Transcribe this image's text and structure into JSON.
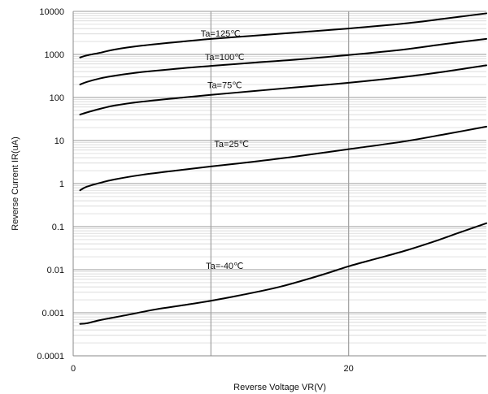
{
  "chart_data": {
    "type": "line",
    "title": "",
    "xlabel": "Reverse Voltage  VR(V)",
    "ylabel": "Reverse Current  IR(uA)",
    "x_scale": "linear",
    "y_scale": "log",
    "xlim": [
      0,
      30
    ],
    "ylim": [
      0.0001,
      10000
    ],
    "x_ticks": [
      {
        "value": 0,
        "label": "0"
      },
      {
        "value": 20,
        "label": "20"
      }
    ],
    "y_ticks": [
      {
        "value": 10000,
        "label": "10000"
      },
      {
        "value": 1000,
        "label": "1000"
      },
      {
        "value": 100,
        "label": "100"
      },
      {
        "value": 10,
        "label": "10"
      },
      {
        "value": 1,
        "label": "1"
      },
      {
        "value": 0.1,
        "label": "0.1"
      },
      {
        "value": 0.01,
        "label": "0.01"
      },
      {
        "value": 0.001,
        "label": "0.001"
      },
      {
        "value": 0.0001,
        "label": "0.0001"
      }
    ],
    "grid": {
      "x_major": [
        10,
        20
      ],
      "y_minor": true
    },
    "line_color": "#000000",
    "grid_color": "#bbbbbb",
    "series": [
      {
        "name": "Ta=125℃",
        "label_at": {
          "x": 10.7,
          "y": 2600
        },
        "x": [
          0.5,
          1,
          2,
          3,
          5,
          8,
          10,
          13,
          16,
          20,
          24,
          27,
          30
        ],
        "y": [
          850,
          950,
          1100,
          1300,
          1600,
          2000,
          2300,
          2700,
          3200,
          4000,
          5200,
          6800,
          9000
        ]
      },
      {
        "name": "Ta=100℃",
        "label_at": {
          "x": 11,
          "y": 740
        },
        "x": [
          0.5,
          1,
          2,
          3,
          5,
          8,
          10,
          13,
          16,
          20,
          24,
          27,
          30
        ],
        "y": [
          200,
          230,
          280,
          320,
          390,
          480,
          540,
          640,
          750,
          970,
          1300,
          1750,
          2300
        ]
      },
      {
        "name": "Ta=75℃",
        "label_at": {
          "x": 11,
          "y": 165
        },
        "x": [
          0.5,
          1,
          2,
          3,
          5,
          8,
          10,
          13,
          16,
          20,
          24,
          27,
          30
        ],
        "y": [
          40,
          45,
          55,
          65,
          80,
          100,
          115,
          140,
          170,
          220,
          300,
          400,
          560
        ]
      },
      {
        "name": "Ta=25℃",
        "label_at": {
          "x": 11.5,
          "y": 7
        },
        "x": [
          0.5,
          1,
          2,
          3,
          5,
          8,
          10,
          13,
          16,
          20,
          24,
          27,
          30
        ],
        "y": [
          0.7,
          0.85,
          1.05,
          1.25,
          1.6,
          2.1,
          2.5,
          3.2,
          4.2,
          6.3,
          9.5,
          14,
          21
        ]
      },
      {
        "name": "Ta=-40℃",
        "label_at": {
          "x": 11,
          "y": 0.0105
        },
        "x": [
          0.5,
          1,
          2,
          4,
          6,
          8,
          10,
          12,
          15,
          18,
          20,
          22,
          24,
          26,
          28,
          30
        ],
        "y": [
          0.00055,
          0.00057,
          0.00068,
          0.0009,
          0.0012,
          0.0015,
          0.0019,
          0.0025,
          0.004,
          0.0075,
          0.012,
          0.018,
          0.027,
          0.043,
          0.072,
          0.12
        ]
      }
    ]
  }
}
